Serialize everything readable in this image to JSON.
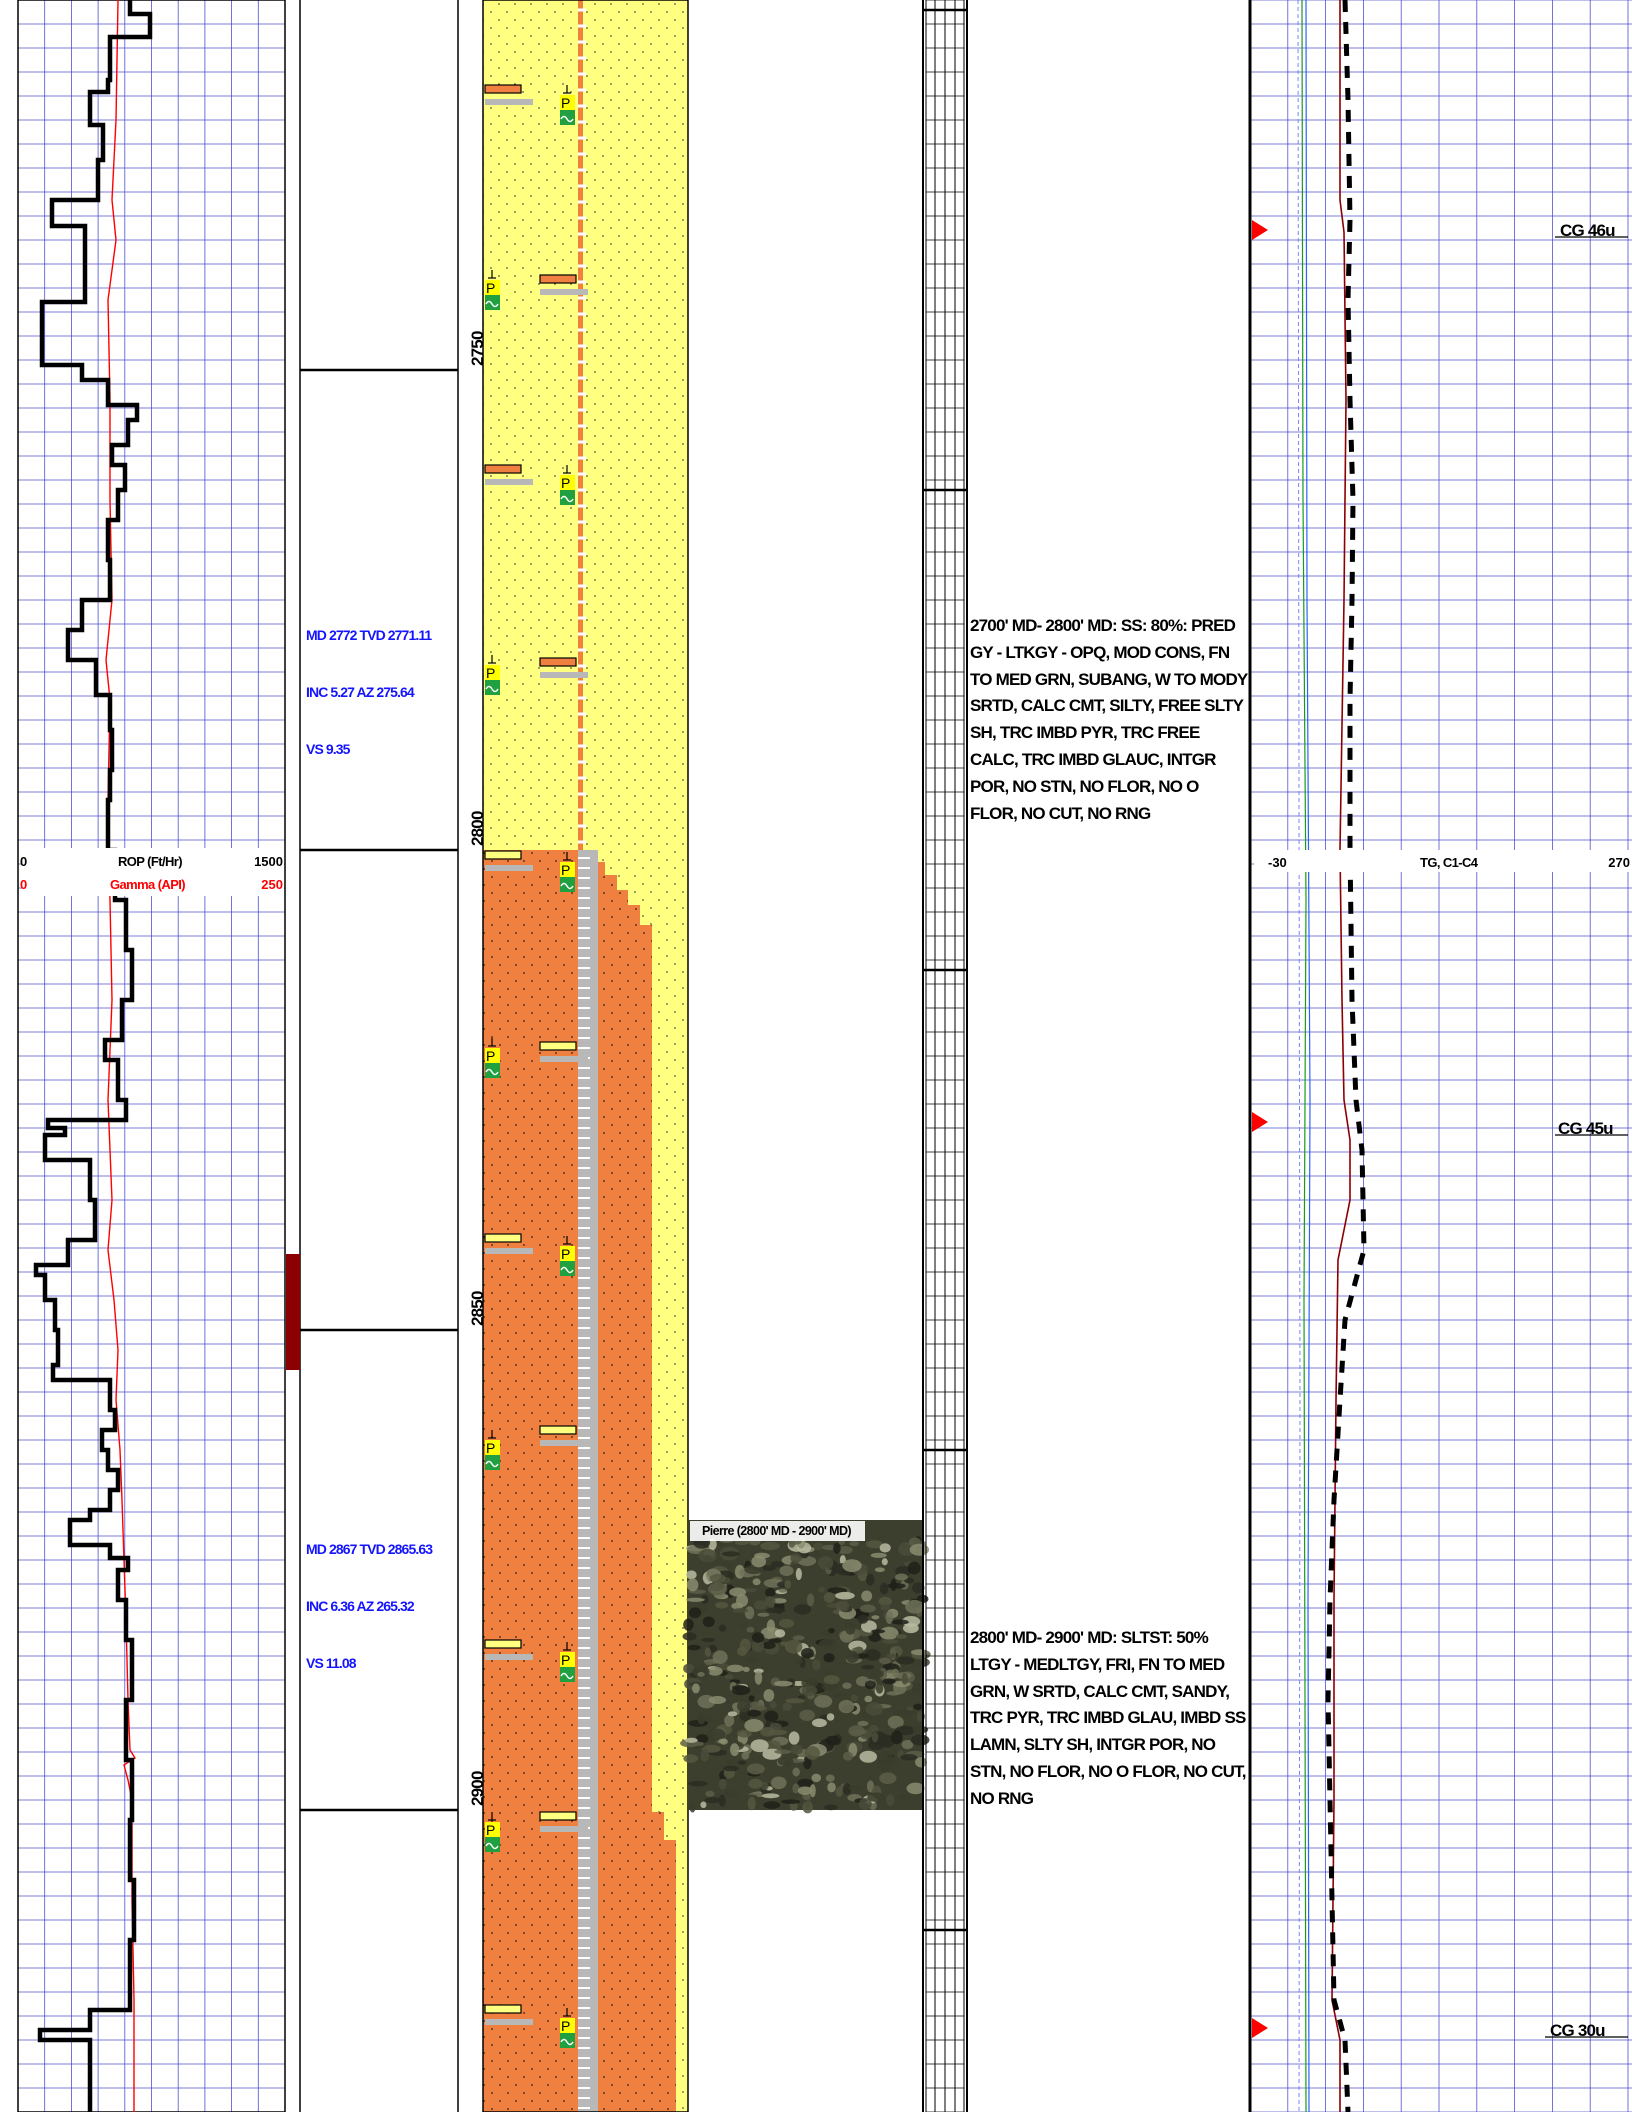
{
  "depth_track": {
    "ticks": [
      {
        "md": 2750,
        "label": "2750"
      },
      {
        "md": 2800,
        "label": "2800"
      },
      {
        "md": 2850,
        "label": "2850"
      },
      {
        "md": 2900,
        "label": "2900"
      }
    ]
  },
  "rop_gamma_track": {
    "rop_label": "ROP (Ft/Hr)",
    "rop_min": "0",
    "rop_max": "1500",
    "gamma_label": "Gamma (API)",
    "gamma_min": "0",
    "gamma_max": "250",
    "rop_color": "#000000",
    "gamma_color": "#ff0000"
  },
  "gas_track": {
    "label": "TG, C1-C4",
    "min": "-30",
    "max": "270",
    "connection_gas": [
      {
        "text": "CG 46u"
      },
      {
        "text": "CG 45u"
      },
      {
        "text": "CG 30u"
      }
    ],
    "marker_color": "#ff0000"
  },
  "surveys": [
    {
      "md_line": "MD 2772 TVD 2771.11",
      "inc_line": "INC 5.27 AZ 275.64",
      "vs_line": "VS 9.35"
    },
    {
      "md_line": "MD 2867 TVD 2865.63",
      "inc_line": "INC 6.36 AZ 265.32",
      "vs_line": "VS 11.08"
    }
  ],
  "lithology_descriptions": [
    {
      "text": "2700' MD- 2800' MD: SS: 80%: PRED GY - LTKGY - OPQ, MOD CONS, FN TO MED GRN, SUBANG, W TO MODY SRTD, CALC CMT, SILTY, FREE SLTY SH, TRC IMBD PYR, TRC FREE CALC, TRC IMBD GLAUC, INTGR POR, NO STN, NO FLOR, NO O FLOR, NO CUT, NO RNG"
    },
    {
      "text": "2800' MD- 2900' MD: SLTST: 50% LTGY - MEDLTGY, FRI, FN TO MED GRN, W SRTD, CALC CMT, SANDY, TRC PYR, TRC IMBD GLAU, IMBD SS LAMN, SLTY SH, INTGR POR, NO STN, NO FLOR, NO O FLOR, NO CUT, NO RNG"
    }
  ],
  "sample_photo": {
    "caption": "Pierre (2800' MD - 2900' MD)"
  },
  "lithology_colors": {
    "sandstone": "#ffff80",
    "siltstone": "#f08040",
    "grid_major": "#00008b",
    "grid_minor": "#5050d0"
  }
}
